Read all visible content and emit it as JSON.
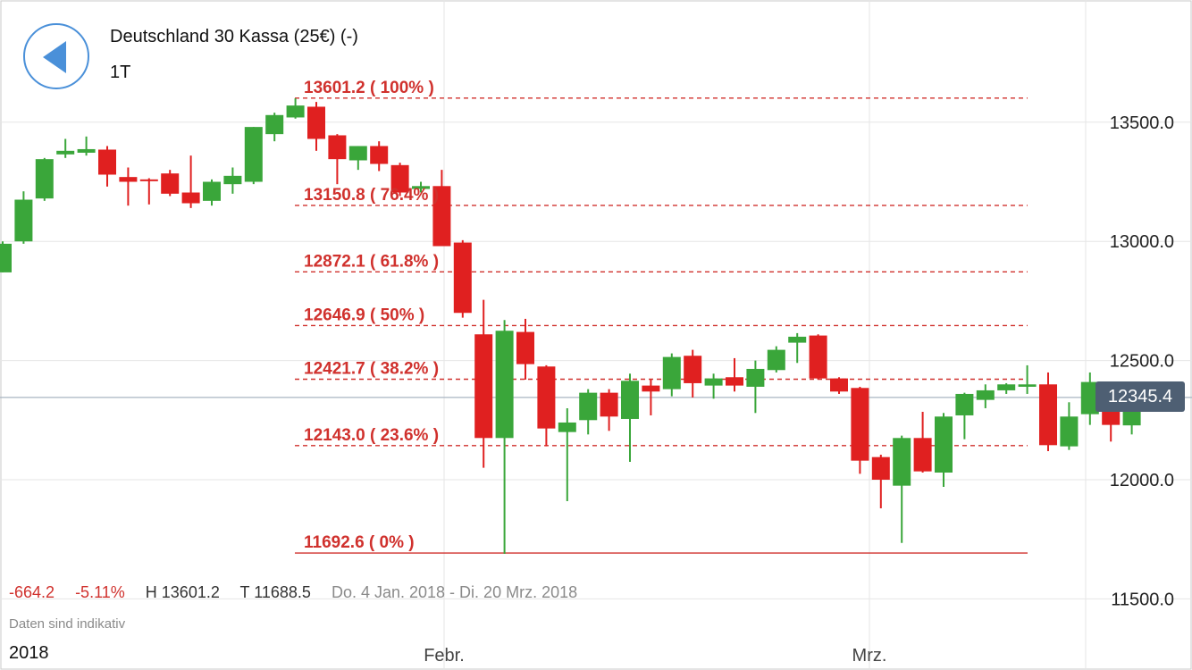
{
  "header": {
    "back_icon": "back-arrow-icon",
    "title": "Deutschland 30 Kassa (25€) (-)",
    "period": "1T"
  },
  "stats": {
    "change": "-664.2",
    "change_pct": "-5.11%",
    "high": "H 13601.2",
    "low": "T 11688.5",
    "range": "Do. 4 Jan. 2018 - Di. 20 Mrz. 2018"
  },
  "note": "Daten sind indikativ",
  "year_label": "2018",
  "current_price": "12345.4",
  "colors": {
    "up": "#3aa63a",
    "down": "#e02020",
    "fib": "#d0312d",
    "accent": "#4a90d9",
    "badge": "#4e5f73"
  },
  "chart_data": {
    "type": "candlestick",
    "y_axis": {
      "ticks": [
        13500,
        13000,
        12500,
        12000,
        11500
      ],
      "tick_labels": [
        "13500.0",
        "13000.0",
        "12500.0",
        "12000.0",
        "11500.0"
      ],
      "position": "right"
    },
    "x_axis": {
      "labels": [
        "Febr.",
        "Mrz."
      ]
    },
    "grid": true,
    "current_price": 12345.4,
    "fibonacci": [
      {
        "price": 13601.2,
        "label": "13601.2 ( 100% )"
      },
      {
        "price": 13150.8,
        "label": "13150.8 ( 76.4% )"
      },
      {
        "price": 12872.1,
        "label": "12872.1 ( 61.8% )"
      },
      {
        "price": 12646.9,
        "label": "12646.9 ( 50% )"
      },
      {
        "price": 12421.7,
        "label": "12421.7 ( 38.2% )"
      },
      {
        "price": 12143.0,
        "label": "12143.0 ( 23.6% )"
      },
      {
        "price": 11692.6,
        "label": "11692.6 ( 0% )"
      }
    ],
    "candles": [
      {
        "o": 12870,
        "h": 13000,
        "l": 12870,
        "c": 12990
      },
      {
        "o": 13000,
        "h": 13210,
        "l": 12990,
        "c": 13175
      },
      {
        "o": 13180,
        "h": 13350,
        "l": 13170,
        "c": 13345
      },
      {
        "o": 13365,
        "h": 13430,
        "l": 13350,
        "c": 13380
      },
      {
        "o": 13372,
        "h": 13440,
        "l": 13360,
        "c": 13387
      },
      {
        "o": 13385,
        "h": 13400,
        "l": 13230,
        "c": 13280
      },
      {
        "o": 13270,
        "h": 13310,
        "l": 13150,
        "c": 13250
      },
      {
        "o": 13260,
        "h": 13265,
        "l": 13155,
        "c": 13255
      },
      {
        "o": 13285,
        "h": 13300,
        "l": 13190,
        "c": 13200
      },
      {
        "o": 13205,
        "h": 13360,
        "l": 13140,
        "c": 13160
      },
      {
        "o": 13170,
        "h": 13260,
        "l": 13150,
        "c": 13250
      },
      {
        "o": 13240,
        "h": 13310,
        "l": 13200,
        "c": 13275
      },
      {
        "o": 13250,
        "h": 13480,
        "l": 13240,
        "c": 13480
      },
      {
        "o": 13450,
        "h": 13540,
        "l": 13420,
        "c": 13530
      },
      {
        "o": 13520,
        "h": 13600,
        "l": 13515,
        "c": 13570
      },
      {
        "o": 13565,
        "h": 13585,
        "l": 13380,
        "c": 13430
      },
      {
        "o": 13445,
        "h": 13450,
        "l": 13240,
        "c": 13345
      },
      {
        "o": 13340,
        "h": 13400,
        "l": 13300,
        "c": 13400
      },
      {
        "o": 13400,
        "h": 13420,
        "l": 13295,
        "c": 13325
      },
      {
        "o": 13320,
        "h": 13330,
        "l": 13190,
        "c": 13205
      },
      {
        "o": 13220,
        "h": 13250,
        "l": 13205,
        "c": 13232
      },
      {
        "o": 13232,
        "h": 13300,
        "l": 12980,
        "c": 12980
      },
      {
        "o": 12995,
        "h": 13005,
        "l": 12680,
        "c": 12700
      },
      {
        "o": 12610,
        "h": 12755,
        "l": 12050,
        "c": 12175
      },
      {
        "o": 12175,
        "h": 12670,
        "l": 11689,
        "c": 12625
      },
      {
        "o": 12620,
        "h": 12675,
        "l": 12420,
        "c": 12485
      },
      {
        "o": 12475,
        "h": 12480,
        "l": 12140,
        "c": 12215
      },
      {
        "o": 12200,
        "h": 12300,
        "l": 11910,
        "c": 12240
      },
      {
        "o": 12250,
        "h": 12380,
        "l": 12190,
        "c": 12365
      },
      {
        "o": 12365,
        "h": 12380,
        "l": 12205,
        "c": 12265
      },
      {
        "o": 12255,
        "h": 12445,
        "l": 12075,
        "c": 12415
      },
      {
        "o": 12395,
        "h": 12420,
        "l": 12270,
        "c": 12370
      },
      {
        "o": 12380,
        "h": 12530,
        "l": 12350,
        "c": 12515
      },
      {
        "o": 12520,
        "h": 12545,
        "l": 12345,
        "c": 12405
      },
      {
        "o": 12395,
        "h": 12445,
        "l": 12340,
        "c": 12425
      },
      {
        "o": 12430,
        "h": 12510,
        "l": 12370,
        "c": 12395
      },
      {
        "o": 12390,
        "h": 12500,
        "l": 12280,
        "c": 12465
      },
      {
        "o": 12460,
        "h": 12560,
        "l": 12450,
        "c": 12545
      },
      {
        "o": 12575,
        "h": 12615,
        "l": 12490,
        "c": 12600
      },
      {
        "o": 12605,
        "h": 12610,
        "l": 12420,
        "c": 12425
      },
      {
        "o": 12425,
        "h": 12430,
        "l": 12360,
        "c": 12370
      },
      {
        "o": 12385,
        "h": 12390,
        "l": 12025,
        "c": 12080
      },
      {
        "o": 12095,
        "h": 12105,
        "l": 11880,
        "c": 12000
      },
      {
        "o": 11975,
        "h": 12185,
        "l": 11735,
        "c": 12175
      },
      {
        "o": 12175,
        "h": 12285,
        "l": 12030,
        "c": 12035
      },
      {
        "o": 12030,
        "h": 12280,
        "l": 11970,
        "c": 12265
      },
      {
        "o": 12270,
        "h": 12365,
        "l": 12170,
        "c": 12360
      },
      {
        "o": 12335,
        "h": 12400,
        "l": 12300,
        "c": 12375
      },
      {
        "o": 12375,
        "h": 12405,
        "l": 12360,
        "c": 12400
      },
      {
        "o": 12390,
        "h": 12480,
        "l": 12360,
        "c": 12400
      },
      {
        "o": 12400,
        "h": 12450,
        "l": 12120,
        "c": 12145
      },
      {
        "o": 12140,
        "h": 12325,
        "l": 12125,
        "c": 12265
      },
      {
        "o": 12275,
        "h": 12450,
        "l": 12230,
        "c": 12410
      },
      {
        "o": 12325,
        "h": 12330,
        "l": 12160,
        "c": 12230
      },
      {
        "o": 12228,
        "h": 12370,
        "l": 12190,
        "c": 12345
      }
    ]
  }
}
